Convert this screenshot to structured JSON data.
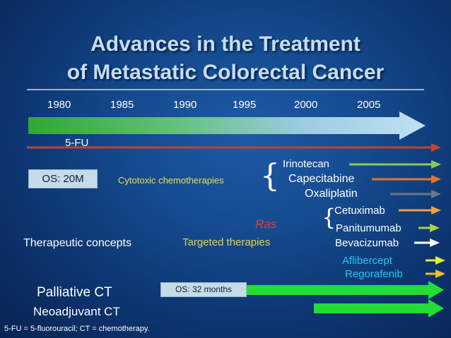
{
  "title": {
    "line1": "Advances in the Treatment",
    "line2": "of Metastatic Colorectal Cancer"
  },
  "timeline_years": [
    "1980",
    "1985",
    "1990",
    "1995",
    "2000",
    "2005"
  ],
  "drugs": {
    "fu": "5-FU",
    "irinotecan": "Irinotecan",
    "capecitabine": "Capecitabine",
    "oxaliplatin": "Oxaliplatin",
    "cetuximab": "Cetuximab",
    "panitumumab": "Panitumumab",
    "bevacizumab": "Bevacizumab",
    "aflibercept": "Aflibercept",
    "regorafenib": "Regorafenib"
  },
  "os_box_1": "OS: 20M",
  "os_box_2": "OS: 32 months",
  "labels": {
    "cytotoxic": "Cytotoxic chemotherapies",
    "targeted": "Targeted therapies",
    "ras": "Ras",
    "therapeutic_concepts": "Therapeutic concepts",
    "palliative": "Palliative CT",
    "neoadjuvant": "Neoadjuvant CT"
  },
  "footnote": "5-FU = 5-fluorouracil; CT = chemotherapy.",
  "colors": {
    "title": "#c7ddef",
    "fu_arrow": "#c0442a",
    "irinotecan_arrow": "#8fc75a",
    "capecitabine_arrow": "#e8742c",
    "oxaliplatin_arrow": "#6a7688",
    "cetuximab_arrow": "#f2a233",
    "panitumumab_arrow": "#a8d24b",
    "bevacizumab_arrow": "#ffffff",
    "aflibercept_arrow": "#e6ec3a",
    "regorafenib_arrow": "#f0c020",
    "concept_arrows": "#22dd33",
    "cytotoxic_text": "#e8e04a",
    "targeted_text": "#e8d04a",
    "ras_text": "#e83a3a",
    "new_drug_text": "#20c8f0",
    "os_box_fill": "#c6dbe8"
  }
}
